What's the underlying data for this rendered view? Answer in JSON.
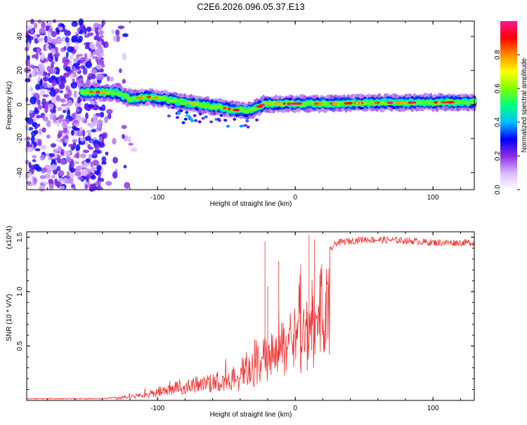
{
  "title": "C2E6.2026.096.05.37.E13",
  "chart_data": [
    {
      "type": "heatmap",
      "xlabel": "Height of straight line (km)",
      "ylabel": "Frequency (Hz)",
      "xlim": [
        -195,
        130
      ],
      "ylim": [
        -50,
        49
      ],
      "xticks": [
        -100,
        0,
        100
      ],
      "yticks": [
        -40,
        -20,
        0,
        20,
        40
      ],
      "colorbar": {
        "label": "Normalized spectral amplitude",
        "range": [
          0,
          1
        ],
        "ticks": [
          0.0,
          0.2,
          0.4,
          0.6,
          0.8
        ],
        "colors": [
          "#ffffff",
          "#d9b8ff",
          "#8a2be2",
          "#0000ff",
          "#00bfff",
          "#00ff7f",
          "#7fff00",
          "#ffff00",
          "#ff8c00",
          "#ff0000",
          "#ff1493"
        ]
      },
      "ridge": [
        {
          "x": -155,
          "y": 7.5
        },
        {
          "x": -130,
          "y": 7.0
        },
        {
          "x": -120,
          "y": 3.5
        },
        {
          "x": -105,
          "y": 4.5
        },
        {
          "x": -90,
          "y": 2.5
        },
        {
          "x": -75,
          "y": 0.5
        },
        {
          "x": -60,
          "y": -1.0
        },
        {
          "x": -45,
          "y": -3.0
        },
        {
          "x": -35,
          "y": -4.0
        },
        {
          "x": -28,
          "y": -2.0
        },
        {
          "x": -22,
          "y": 0.5
        },
        {
          "x": -10,
          "y": 0.5
        },
        {
          "x": 0,
          "y": 0.5
        },
        {
          "x": 20,
          "y": 0.5
        },
        {
          "x": 60,
          "y": 1.0
        },
        {
          "x": 100,
          "y": 1.2
        },
        {
          "x": 130,
          "y": 1.5
        }
      ]
    },
    {
      "type": "line",
      "xlabel": "Height of straight line (km)",
      "ylabel": "SNR (10 * V/V)",
      "y_multiplier": "(x10^4)",
      "xlim": [
        -195,
        130
      ],
      "ylim": [
        0,
        1.55
      ],
      "xticks": [
        -100,
        0,
        100
      ],
      "yticks": [
        0.5,
        1.0,
        1.5
      ],
      "color": "#ee3333",
      "envelope": [
        {
          "x": -195,
          "y": 0.02
        },
        {
          "x": -140,
          "y": 0.02
        },
        {
          "x": -125,
          "y": 0.04
        },
        {
          "x": -110,
          "y": 0.08
        },
        {
          "x": -100,
          "y": 0.12
        },
        {
          "x": -90,
          "y": 0.16
        },
        {
          "x": -80,
          "y": 0.2
        },
        {
          "x": -70,
          "y": 0.23
        },
        {
          "x": -60,
          "y": 0.25
        },
        {
          "x": -50,
          "y": 0.27
        },
        {
          "x": -40,
          "y": 0.3
        },
        {
          "x": -30,
          "y": 0.45
        },
        {
          "x": -22,
          "y": 0.6
        },
        {
          "x": -15,
          "y": 0.65
        },
        {
          "x": -10,
          "y": 0.75
        },
        {
          "x": 0,
          "y": 0.85
        },
        {
          "x": 10,
          "y": 0.95
        },
        {
          "x": 15,
          "y": 1.1
        },
        {
          "x": 20,
          "y": 1.3
        },
        {
          "x": 30,
          "y": 1.45
        },
        {
          "x": 50,
          "y": 1.48
        },
        {
          "x": 80,
          "y": 1.47
        },
        {
          "x": 100,
          "y": 1.45
        },
        {
          "x": 130,
          "y": 1.45
        }
      ],
      "spikes": [
        {
          "x": -22,
          "y": 1.46
        },
        {
          "x": -20,
          "y": 1.05
        },
        {
          "x": -12,
          "y": 1.28
        },
        {
          "x": 4,
          "y": 1.25
        },
        {
          "x": 10,
          "y": 1.52
        },
        {
          "x": 14,
          "y": 1.48
        }
      ]
    }
  ]
}
